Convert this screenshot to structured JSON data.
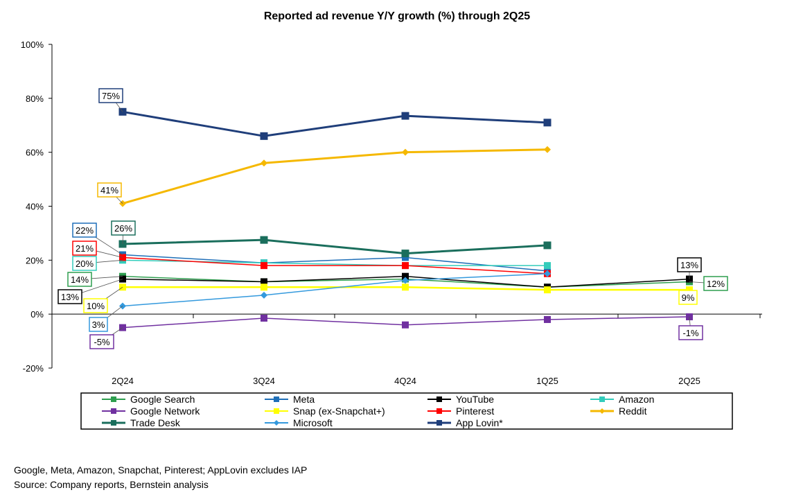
{
  "chart_data": {
    "type": "line",
    "title": "Reported ad revenue Y/Y growth (%) through 2Q25",
    "xlabel": "",
    "ylabel": "",
    "ylim": [
      -20,
      100
    ],
    "yticks": [
      -20,
      0,
      20,
      40,
      60,
      80,
      100
    ],
    "ytick_labels": [
      "-20%",
      "0%",
      "20%",
      "40%",
      "60%",
      "80%",
      "100%"
    ],
    "categories": [
      "2Q24",
      "3Q24",
      "4Q24",
      "1Q25",
      "2Q25"
    ],
    "grid": false,
    "legend_position": "bottom",
    "series": [
      {
        "name": "Google Search",
        "color": "#2e9e4f",
        "marker": "square",
        "values": [
          14,
          12,
          13,
          10,
          12
        ]
      },
      {
        "name": "Meta",
        "color": "#1f6fb8",
        "marker": "square",
        "values": [
          22,
          19,
          21,
          16,
          null
        ]
      },
      {
        "name": "YouTube",
        "color": "#000000",
        "marker": "square",
        "values": [
          13,
          12,
          14,
          10,
          13
        ]
      },
      {
        "name": "Amazon",
        "color": "#33ccbb",
        "marker": "square",
        "values": [
          20,
          19,
          18,
          18,
          null
        ]
      },
      {
        "name": "Google Network",
        "color": "#7030a0",
        "marker": "square",
        "values": [
          -5,
          -1.5,
          -4,
          -2,
          -1
        ]
      },
      {
        "name": "Snap (ex-Snapchat+)",
        "color": "#ffff00",
        "marker": "square",
        "values": [
          10,
          10,
          10,
          9,
          9
        ]
      },
      {
        "name": "Pinterest",
        "color": "#ff0000",
        "marker": "square",
        "values": [
          21,
          18,
          18,
          15,
          null
        ]
      },
      {
        "name": "Reddit",
        "color": "#f5b800",
        "marker": "diamond",
        "values": [
          41,
          56,
          60,
          61,
          null
        ]
      },
      {
        "name": "Trade Desk",
        "color": "#1a6e5c",
        "marker": "square",
        "values": [
          26,
          27.5,
          22.5,
          25.5,
          null
        ]
      },
      {
        "name": "Microsoft",
        "color": "#3399dd",
        "marker": "diamond",
        "values": [
          3,
          7,
          12.5,
          15,
          null
        ]
      },
      {
        "name": "App Lovin*",
        "color": "#1f3e7a",
        "marker": "square",
        "values": [
          75,
          66,
          73.5,
          71,
          null
        ]
      }
    ],
    "annotations": [
      {
        "text": "75%",
        "series": "App Lovin*",
        "color": "#1f3e7a"
      },
      {
        "text": "41%",
        "series": "Reddit",
        "color": "#f5b800"
      },
      {
        "text": "26%",
        "series": "Trade Desk",
        "color": "#1a6e5c"
      },
      {
        "text": "22%",
        "series": "Meta",
        "color": "#1f6fb8"
      },
      {
        "text": "21%",
        "series": "Pinterest",
        "color": "#ff0000"
      },
      {
        "text": "20%",
        "series": "Amazon",
        "color": "#33ccbb"
      },
      {
        "text": "14%",
        "series": "Google Search",
        "color": "#2e9e4f"
      },
      {
        "text": "13%",
        "series": "YouTube",
        "color": "#000000"
      },
      {
        "text": "10%",
        "series": "Snap (ex-Snapchat+)",
        "color": "#ffff00"
      },
      {
        "text": "3%",
        "series": "Microsoft",
        "color": "#3399dd"
      },
      {
        "text": "-5%",
        "series": "Google Network",
        "color": "#7030a0"
      },
      {
        "text": "13%",
        "series": "YouTube",
        "color": "#000000"
      },
      {
        "text": "12%",
        "series": "Google Search",
        "color": "#2e9e4f"
      },
      {
        "text": "9%",
        "series": "Snap (ex-Snapchat+)",
        "color": "#ffff00"
      },
      {
        "text": "-1%",
        "series": "Google Network",
        "color": "#7030a0"
      }
    ]
  },
  "footnotes": {
    "note": "Google, Meta, Amazon, Snapchat, Pinterest; AppLovin excludes IAP",
    "source": "Source: Company reports, Bernstein analysis"
  }
}
